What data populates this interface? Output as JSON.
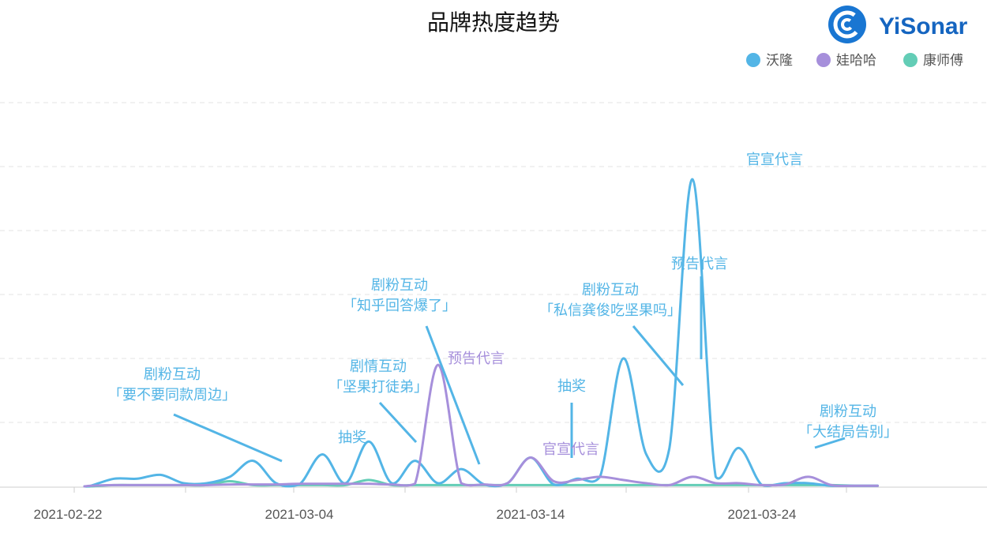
{
  "colors": {
    "沃隆": "#53b5e6",
    "娃哈哈": "#a68fdb",
    "康师傅": "#63cdb6",
    "grid": "#e3e3e3",
    "axis": "#cccccc"
  },
  "logo": {
    "text": "YiSonar",
    "icon": "yisonar-c-logo-icon"
  },
  "chart_data": {
    "type": "line",
    "title": "品牌热度趋势",
    "xlabel": "",
    "ylabel": "",
    "x_ticks": [
      "2021-02-22",
      "2021-03-04",
      "2021-03-14",
      "2021-03-24"
    ],
    "x_range": [
      "2021-02-22",
      "2021-03-29"
    ],
    "ylim": [
      0,
      6
    ],
    "grid": "horizontal dashed",
    "legend": "top-right",
    "y_ticks_visible": false,
    "series": [
      {
        "name": "沃隆",
        "color": "#53b5e6",
        "x": [
          "2021-02-23",
          "2021-02-24",
          "2021-02-25",
          "2021-02-26",
          "2021-02-27",
          "2021-02-28",
          "2021-03-01",
          "2021-03-02",
          "2021-03-03",
          "2021-03-04",
          "2021-03-05",
          "2021-03-06",
          "2021-03-07",
          "2021-03-08",
          "2021-03-09",
          "2021-03-10",
          "2021-03-11",
          "2021-03-12",
          "2021-03-13",
          "2021-03-14",
          "2021-03-15",
          "2021-03-16",
          "2021-03-17",
          "2021-03-18",
          "2021-03-19",
          "2021-03-20",
          "2021-03-21",
          "2021-03-22",
          "2021-03-23",
          "2021-03-24",
          "2021-03-25",
          "2021-03-26",
          "2021-03-27",
          "2021-03-28",
          "2021-03-29"
        ],
        "values": [
          0.01,
          0.12,
          0.12,
          0.18,
          0.05,
          0.05,
          0.15,
          0.4,
          0.05,
          0.03,
          0.5,
          0.05,
          0.7,
          0.05,
          0.4,
          0.05,
          0.27,
          0.03,
          0.05,
          0.45,
          0.03,
          0.12,
          0.15,
          2.0,
          0.5,
          0.6,
          4.8,
          0.15,
          0.6,
          0.02,
          0.05,
          0.05,
          0.01,
          0.01,
          0.01
        ]
      },
      {
        "name": "娃哈哈",
        "color": "#a68fdb",
        "x": [
          "2021-02-23",
          "2021-02-24",
          "2021-02-25",
          "2021-02-26",
          "2021-02-27",
          "2021-02-28",
          "2021-03-01",
          "2021-03-02",
          "2021-03-03",
          "2021-03-04",
          "2021-03-05",
          "2021-03-06",
          "2021-03-07",
          "2021-03-08",
          "2021-03-09",
          "2021-03-10",
          "2021-03-11",
          "2021-03-12",
          "2021-03-13",
          "2021-03-14",
          "2021-03-15",
          "2021-03-16",
          "2021-03-17",
          "2021-03-18",
          "2021-03-19",
          "2021-03-20",
          "2021-03-21",
          "2021-03-22",
          "2021-03-23",
          "2021-03-24",
          "2021-03-25",
          "2021-03-26",
          "2021-03-27",
          "2021-03-28",
          "2021-03-29"
        ],
        "values": [
          0.01,
          0.02,
          0.02,
          0.02,
          0.02,
          0.02,
          0.03,
          0.03,
          0.03,
          0.04,
          0.04,
          0.04,
          0.04,
          0.03,
          0.04,
          1.9,
          0.05,
          0.03,
          0.05,
          0.45,
          0.08,
          0.1,
          0.15,
          0.1,
          0.05,
          0.02,
          0.15,
          0.05,
          0.05,
          0.02,
          0.03,
          0.15,
          0.02,
          0.01,
          0.01
        ]
      },
      {
        "name": "康师傅",
        "color": "#63cdb6",
        "x": [
          "2021-02-23",
          "2021-02-24",
          "2021-02-25",
          "2021-02-26",
          "2021-02-27",
          "2021-02-28",
          "2021-03-01",
          "2021-03-02",
          "2021-03-03",
          "2021-03-04",
          "2021-03-05",
          "2021-03-06",
          "2021-03-07",
          "2021-03-08",
          "2021-03-09",
          "2021-03-10",
          "2021-03-11",
          "2021-03-12",
          "2021-03-13",
          "2021-03-14",
          "2021-03-15",
          "2021-03-16",
          "2021-03-17",
          "2021-03-18",
          "2021-03-19",
          "2021-03-20",
          "2021-03-21",
          "2021-03-22",
          "2021-03-23",
          "2021-03-24",
          "2021-03-25",
          "2021-03-26",
          "2021-03-27",
          "2021-03-28",
          "2021-03-29"
        ],
        "values": [
          0.0,
          0.02,
          0.02,
          0.02,
          0.02,
          0.02,
          0.08,
          0.02,
          0.02,
          0.02,
          0.02,
          0.02,
          0.1,
          0.02,
          0.02,
          0.02,
          0.02,
          0.02,
          0.02,
          0.02,
          0.02,
          0.02,
          0.02,
          0.02,
          0.02,
          0.02,
          0.02,
          0.02,
          0.02,
          0.02,
          0.02,
          0.02,
          0.02,
          0.01,
          0.01
        ]
      }
    ],
    "annotations": [
      {
        "series": "沃隆",
        "date": "2021-03-02",
        "lines": [
          "剧粉互动",
          "「要不要同款周边」"
        ]
      },
      {
        "series": "沃隆",
        "date": "2021-03-05",
        "lines": [
          "抽奖"
        ]
      },
      {
        "series": "沃隆",
        "date": "2021-03-07",
        "lines": [
          "剧情互动",
          "「坚果打徒弟」"
        ]
      },
      {
        "series": "沃隆",
        "date": "2021-03-11",
        "lines": [
          "剧粉互动",
          "「知乎回答爆了」"
        ]
      },
      {
        "series": "娃哈哈",
        "date": "2021-03-10",
        "lines": [
          "预告代言"
        ]
      },
      {
        "series": "沃隆",
        "date": "2021-03-14",
        "lines": [
          "抽奖"
        ]
      },
      {
        "series": "娃哈哈",
        "date": "2021-03-14",
        "lines": [
          "官宣代言"
        ]
      },
      {
        "series": "沃隆",
        "date": "2021-03-18",
        "lines": [
          "剧粉互动",
          "「私信龚俊吃坚果吗」"
        ]
      },
      {
        "series": "沃隆",
        "date": "2021-03-18",
        "lines": [
          "预告代言"
        ]
      },
      {
        "series": "沃隆",
        "date": "2021-03-21",
        "lines": [
          "官宣代言"
        ]
      },
      {
        "series": "沃隆",
        "date": "2021-03-23",
        "lines": [
          "剧粉互动",
          "「大结局告别」"
        ]
      }
    ]
  }
}
